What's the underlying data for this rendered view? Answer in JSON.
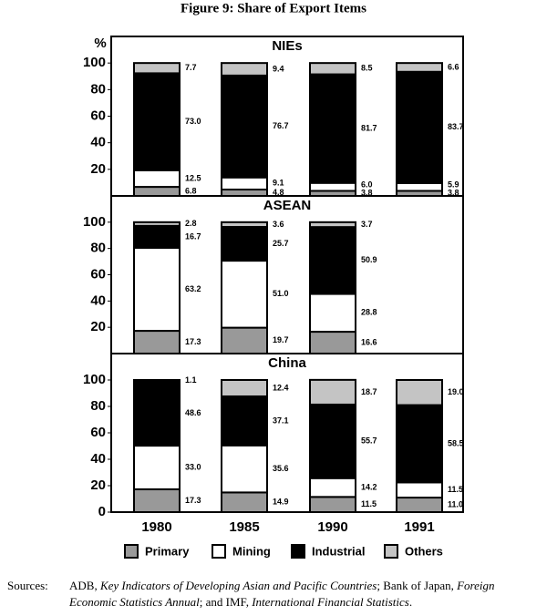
{
  "title": "Figure 9: Share of Export Items",
  "chart_data": [
    {
      "type": "bar",
      "stacked": true,
      "title": "NIEs",
      "y_label": "%",
      "categories": [
        "1980",
        "1985",
        "1990",
        "1991"
      ],
      "series": [
        {
          "name": "Primary",
          "color": "#999999",
          "values": [
            6.8,
            4.8,
            3.8,
            3.8
          ],
          "value_labels": [
            "6.8",
            "4.8",
            "3.8",
            "3.8"
          ]
        },
        {
          "name": "Mining",
          "color": "#ffffff",
          "values": [
            12.5,
            9.1,
            6.0,
            5.9
          ],
          "value_labels": [
            "12.5",
            "9.1",
            "6.0",
            "5.9"
          ]
        },
        {
          "name": "Industrial",
          "color": "#000000",
          "values": [
            73.0,
            76.7,
            81.7,
            83.7
          ],
          "value_labels": [
            "73.0",
            "76.7",
            "81.7",
            "83.7"
          ]
        },
        {
          "name": "Others",
          "color": "#c4c4c4",
          "values": [
            7.7,
            9.4,
            8.5,
            6.6
          ],
          "value_labels": [
            "7.7",
            "9.4",
            "8.5",
            "6.6"
          ]
        }
      ],
      "ylim": [
        0,
        120
      ],
      "yticks": [
        20,
        40,
        60,
        80,
        100
      ]
    },
    {
      "type": "bar",
      "stacked": true,
      "title": "ASEAN",
      "categories": [
        "1980",
        "1985",
        "1990",
        "1991"
      ],
      "series": [
        {
          "name": "Primary",
          "color": "#999999",
          "values": [
            17.3,
            19.7,
            16.6,
            null
          ],
          "value_labels": [
            "17.3",
            "19.7",
            "16.6",
            null
          ]
        },
        {
          "name": "Mining",
          "color": "#ffffff",
          "values": [
            63.2,
            51.0,
            28.8,
            null
          ],
          "value_labels": [
            "63.2",
            "51.0",
            "28.8",
            null
          ]
        },
        {
          "name": "Industrial",
          "color": "#000000",
          "values": [
            16.7,
            25.7,
            50.9,
            null
          ],
          "value_labels": [
            "16.7",
            "25.7",
            "50.9",
            null
          ]
        },
        {
          "name": "Others",
          "color": "#c4c4c4",
          "values": [
            2.8,
            3.6,
            3.7,
            null
          ],
          "value_labels": [
            "2.8",
            "3.6",
            "3.7",
            null
          ]
        }
      ],
      "ylim": [
        0,
        120
      ],
      "yticks": [
        20,
        40,
        60,
        80,
        100
      ]
    },
    {
      "type": "bar",
      "stacked": true,
      "title": "China",
      "categories": [
        "1980",
        "1985",
        "1990",
        "1991"
      ],
      "series": [
        {
          "name": "Primary",
          "color": "#999999",
          "values": [
            17.3,
            14.9,
            11.5,
            11.0
          ],
          "value_labels": [
            "17.3",
            "14.9",
            "11.5",
            "11.0"
          ]
        },
        {
          "name": "Mining",
          "color": "#ffffff",
          "values": [
            33.0,
            35.6,
            14.2,
            11.5
          ],
          "value_labels": [
            "33.0",
            "35.6",
            "14.2",
            "11.5"
          ]
        },
        {
          "name": "Industrial",
          "color": "#000000",
          "values": [
            48.6,
            37.1,
            55.7,
            58.5
          ],
          "value_labels": [
            "48.6",
            "37.1",
            "55.7",
            "58.5"
          ]
        },
        {
          "name": "Others",
          "color": "#c4c4c4",
          "values": [
            1.1,
            12.4,
            18.7,
            19.0
          ],
          "value_labels": [
            "1.1",
            "12.4",
            "18.7",
            "19.0"
          ]
        }
      ],
      "ylim": [
        0,
        120
      ],
      "yticks": [
        0,
        20,
        40,
        60,
        80,
        100
      ]
    }
  ],
  "sources": {
    "label": "Sources:",
    "segments": [
      {
        "text": "ADB, ",
        "italic": false
      },
      {
        "text": "Key Indicators of Developing Asian and Pacific Countries",
        "italic": true
      },
      {
        "text": "; Bank of Japan, ",
        "italic": false
      },
      {
        "text": "Foreign Economic Statistics Annual",
        "italic": true
      },
      {
        "text": "; and IMF, ",
        "italic": false
      },
      {
        "text": "International Financial Statistics",
        "italic": true
      },
      {
        "text": ".",
        "italic": false
      }
    ]
  }
}
